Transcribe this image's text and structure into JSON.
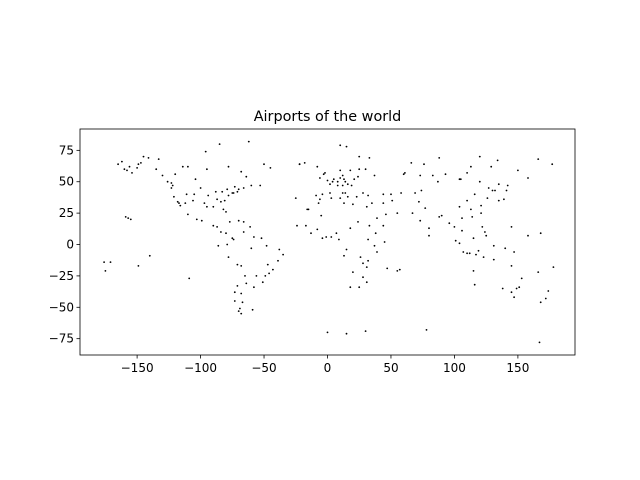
{
  "chart_data": {
    "type": "scatter",
    "title": "Airports of the world",
    "xlabel": "",
    "ylabel": "",
    "xlim": [
      -195,
      195
    ],
    "ylim": [
      -88,
      92
    ],
    "xticks": [
      -150,
      -100,
      -50,
      0,
      50,
      100,
      150
    ],
    "yticks": [
      -75,
      -50,
      -25,
      0,
      25,
      50,
      75
    ],
    "marker_color": "#000000",
    "grid": false,
    "legend": "none",
    "series": [
      {
        "points": [
          [
            -165,
            64
          ],
          [
            -162,
            66
          ],
          [
            -160,
            60
          ],
          [
            -158,
            59
          ],
          [
            -156,
            62
          ],
          [
            -154,
            57
          ],
          [
            -150,
            61
          ],
          [
            -149,
            64
          ],
          [
            -147,
            65
          ],
          [
            -145,
            70
          ],
          [
            -141,
            69
          ],
          [
            -135,
            60
          ],
          [
            -130,
            55
          ],
          [
            -126,
            50
          ],
          [
            -123,
            49
          ],
          [
            -122,
            47
          ],
          [
            -123,
            45
          ],
          [
            -121,
            38
          ],
          [
            -118,
            34
          ],
          [
            -117,
            33
          ],
          [
            -112,
            33
          ],
          [
            -111,
            40
          ],
          [
            -106,
            35
          ],
          [
            -105,
            40
          ],
          [
            -104,
            52
          ],
          [
            -100,
            45
          ],
          [
            -97,
            33
          ],
          [
            -95,
            30
          ],
          [
            -94,
            39
          ],
          [
            -90,
            30
          ],
          [
            -88,
            42
          ],
          [
            -87,
            36
          ],
          [
            -84,
            34
          ],
          [
            -82,
            28
          ],
          [
            -80,
            26
          ],
          [
            -81,
            35
          ],
          [
            -83,
            42
          ],
          [
            -78,
            39
          ],
          [
            -75,
            41
          ],
          [
            -74,
            41
          ],
          [
            -71,
            42
          ],
          [
            -70,
            44
          ],
          [
            -73,
            46
          ],
          [
            -79,
            44
          ],
          [
            -66,
            45
          ],
          [
            -60,
            47
          ],
          [
            -53,
            47
          ],
          [
            -64,
            54
          ],
          [
            -68,
            58
          ],
          [
            -78,
            62
          ],
          [
            -95,
            60
          ],
          [
            -110,
            62
          ],
          [
            -114,
            62
          ],
          [
            -120,
            56
          ],
          [
            -133,
            68
          ],
          [
            -96,
            74
          ],
          [
            -85,
            80
          ],
          [
            -62,
            82
          ],
          [
            -50,
            64
          ],
          [
            -45,
            61
          ],
          [
            -22,
            64
          ],
          [
            -18,
            65
          ],
          [
            -99,
            19
          ],
          [
            -103,
            20
          ],
          [
            -110,
            24
          ],
          [
            -116,
            31
          ],
          [
            -90,
            15
          ],
          [
            -87,
            14
          ],
          [
            -84,
            10
          ],
          [
            -80,
            9
          ],
          [
            -77,
            18
          ],
          [
            -70,
            19
          ],
          [
            -66,
            18
          ],
          [
            -61,
            14
          ],
          [
            -75,
            5
          ],
          [
            -74,
            4
          ],
          [
            -79,
            0
          ],
          [
            -78,
            -10
          ],
          [
            -71,
            -16
          ],
          [
            -68,
            -17
          ],
          [
            -66,
            10
          ],
          [
            -58,
            6
          ],
          [
            -52,
            5
          ],
          [
            -60,
            -3
          ],
          [
            -48,
            -1
          ],
          [
            -38,
            -4
          ],
          [
            -35,
            -8
          ],
          [
            -39,
            -13
          ],
          [
            -43,
            -20
          ],
          [
            -47,
            -16
          ],
          [
            -46,
            -23
          ],
          [
            -49,
            -25
          ],
          [
            -51,
            -30
          ],
          [
            -56,
            -25
          ],
          [
            -58,
            -34
          ],
          [
            -64,
            -31
          ],
          [
            -65,
            -25
          ],
          [
            -71,
            -33
          ],
          [
            -73,
            -38
          ],
          [
            -68,
            -39
          ],
          [
            -67,
            -46
          ],
          [
            -73,
            -45
          ],
          [
            -69,
            -51
          ],
          [
            -70,
            -53
          ],
          [
            -68,
            -55
          ],
          [
            -59,
            -52
          ],
          [
            -86,
            -1
          ],
          [
            -109,
            -27
          ],
          [
            -176,
            -14
          ],
          [
            -171,
            -14
          ],
          [
            -175,
            -21
          ],
          [
            -149,
            -17
          ],
          [
            -157,
            21
          ],
          [
            -155,
            20
          ],
          [
            -159,
            22
          ],
          [
            -140,
            -9
          ],
          [
            -22,
            64
          ],
          [
            -8,
            62
          ],
          [
            -16,
            28
          ],
          [
            -25,
            37
          ],
          [
            -24,
            15
          ],
          [
            -9,
            39
          ],
          [
            -4,
            40
          ],
          [
            2,
            41
          ],
          [
            -6,
            36
          ],
          [
            2,
            48
          ],
          [
            0,
            51
          ],
          [
            -6,
            53
          ],
          [
            -3,
            56
          ],
          [
            -2,
            57
          ],
          [
            5,
            52
          ],
          [
            4,
            50
          ],
          [
            8,
            50
          ],
          [
            10,
            53
          ],
          [
            13,
            52
          ],
          [
            12,
            55
          ],
          [
            10,
            59
          ],
          [
            18,
            59
          ],
          [
            25,
            60
          ],
          [
            30,
            60
          ],
          [
            37,
            55
          ],
          [
            24,
            54
          ],
          [
            21,
            52
          ],
          [
            19,
            47
          ],
          [
            14,
            50
          ],
          [
            16,
            48
          ],
          [
            12,
            47
          ],
          [
            8,
            47
          ],
          [
            12,
            41
          ],
          [
            14,
            41
          ],
          [
            16,
            38
          ],
          [
            23,
            38
          ],
          [
            28,
            41
          ],
          [
            32,
            39
          ],
          [
            35,
            33
          ],
          [
            44,
            33
          ],
          [
            51,
            35
          ],
          [
            46,
            24
          ],
          [
            55,
            25
          ],
          [
            44,
            15
          ],
          [
            39,
            21
          ],
          [
            31,
            30
          ],
          [
            33,
            15
          ],
          [
            38,
            9
          ],
          [
            45,
            2
          ],
          [
            37,
            -1
          ],
          [
            39,
            -6
          ],
          [
            32,
            -13
          ],
          [
            28,
            -15
          ],
          [
            31,
            -18
          ],
          [
            28,
            -26
          ],
          [
            18,
            -34
          ],
          [
            25,
            -34
          ],
          [
            31,
            -30
          ],
          [
            47,
            -19
          ],
          [
            57,
            -20
          ],
          [
            55,
            -21
          ],
          [
            13,
            -9
          ],
          [
            15,
            -4
          ],
          [
            9,
            4
          ],
          [
            7,
            9
          ],
          [
            3,
            6
          ],
          [
            -1,
            6
          ],
          [
            -4,
            5
          ],
          [
            -8,
            12
          ],
          [
            -13,
            9
          ],
          [
            -17,
            15
          ],
          [
            -15,
            28
          ],
          [
            -7,
            33
          ],
          [
            3,
            37
          ],
          [
            10,
            37
          ],
          [
            13,
            33
          ],
          [
            20,
            32
          ],
          [
            18,
            13
          ],
          [
            -5,
            23
          ],
          [
            24,
            18
          ],
          [
            32,
            4
          ],
          [
            26,
            -10
          ],
          [
            20,
            -22
          ],
          [
            0,
            -70
          ],
          [
            15,
            -71
          ],
          [
            30,
            -69
          ],
          [
            10,
            79
          ],
          [
            15,
            78
          ],
          [
            25,
            70
          ],
          [
            33,
            69
          ],
          [
            44,
            40
          ],
          [
            50,
            40
          ],
          [
            58,
            41
          ],
          [
            60,
            56
          ],
          [
            69,
            41
          ],
          [
            74,
            43
          ],
          [
            77,
            29
          ],
          [
            73,
            19
          ],
          [
            80,
            13
          ],
          [
            88,
            22
          ],
          [
            72,
            34
          ],
          [
            67,
            25
          ],
          [
            80,
            7
          ],
          [
            90,
            23
          ],
          [
            96,
            17
          ],
          [
            100,
            14
          ],
          [
            101,
            3
          ],
          [
            104,
            1
          ],
          [
            106,
            11
          ],
          [
            106,
            21
          ],
          [
            114,
            22
          ],
          [
            121,
            25
          ],
          [
            121,
            31
          ],
          [
            116,
            40
          ],
          [
            113,
            28
          ],
          [
            104,
            30
          ],
          [
            110,
            35
          ],
          [
            126,
            37
          ],
          [
            127,
            45
          ],
          [
            130,
            43
          ],
          [
            135,
            35
          ],
          [
            139,
            36
          ],
          [
            141,
            43
          ],
          [
            132,
            43
          ],
          [
            142,
            47
          ],
          [
            135,
            48
          ],
          [
            120,
            50
          ],
          [
            105,
            52
          ],
          [
            87,
            50
          ],
          [
            83,
            55
          ],
          [
            73,
            55
          ],
          [
            61,
            57
          ],
          [
            66,
            65
          ],
          [
            76,
            64
          ],
          [
            88,
            69
          ],
          [
            93,
            56
          ],
          [
            104,
            52
          ],
          [
            113,
            62
          ],
          [
            129,
            62
          ],
          [
            150,
            59
          ],
          [
            158,
            53
          ],
          [
            177,
            64
          ],
          [
            166,
            68
          ],
          [
            134,
            67
          ],
          [
            120,
            70
          ],
          [
            110,
            57
          ],
          [
            122,
            14
          ],
          [
            125,
            7
          ],
          [
            124,
            10
          ],
          [
            115,
            5
          ],
          [
            110,
            -7
          ],
          [
            107,
            -6
          ],
          [
            112,
            -7
          ],
          [
            117,
            -8
          ],
          [
            119,
            -5
          ],
          [
            123,
            -10
          ],
          [
            131,
            -1
          ],
          [
            140,
            -3
          ],
          [
            147,
            -6
          ],
          [
            145,
            -38
          ],
          [
            151,
            -34
          ],
          [
            153,
            -27
          ],
          [
            145,
            -17
          ],
          [
            131,
            -12
          ],
          [
            116,
            -32
          ],
          [
            115,
            -21
          ],
          [
            138,
            -35
          ],
          [
            149,
            -35
          ],
          [
            147,
            -42
          ],
          [
            166,
            -22
          ],
          [
            174,
            -37
          ],
          [
            172,
            -43
          ],
          [
            168,
            -46
          ],
          [
            178,
            -18
          ],
          [
            167,
            -78
          ],
          [
            78,
            -68
          ],
          [
            145,
            14
          ],
          [
            158,
            7
          ],
          [
            168,
            9
          ]
        ]
      }
    ]
  }
}
